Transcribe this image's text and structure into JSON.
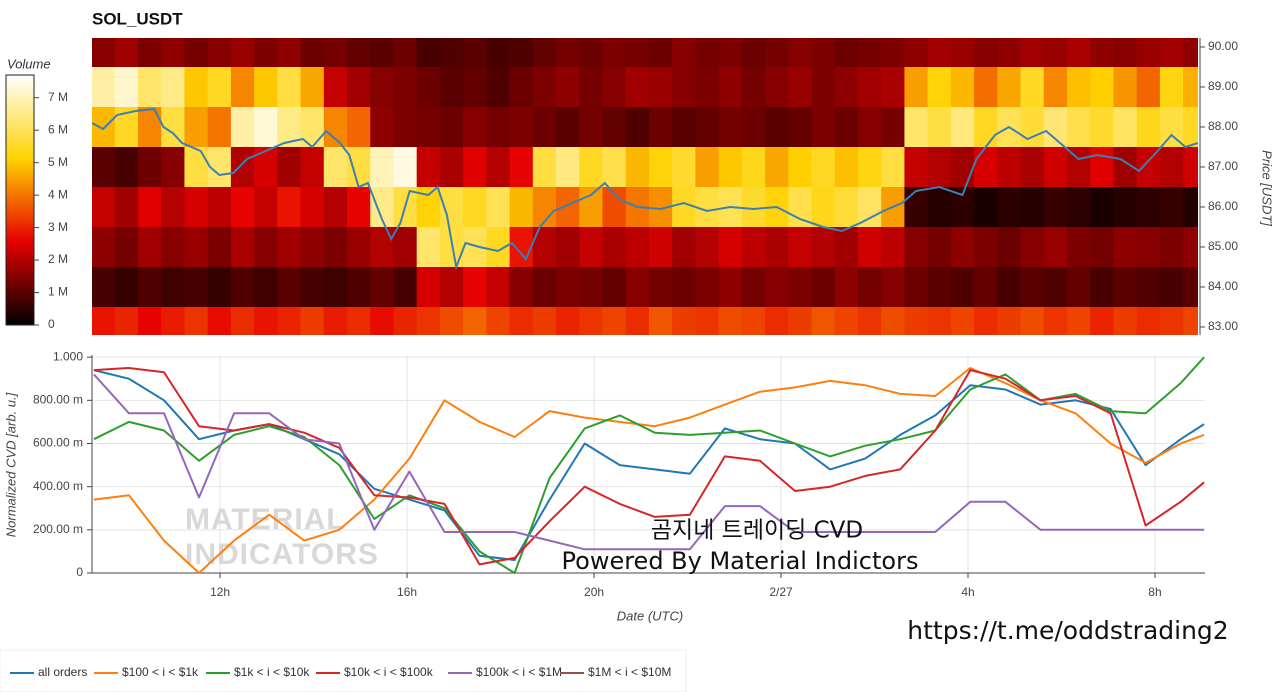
{
  "chart_data": [
    {
      "type": "heatmap",
      "title": "SOL_USDT",
      "ylabel": "Price [USDT]",
      "x": [
        9.5,
        10,
        10.5,
        11,
        11.5,
        12,
        12.5,
        13,
        13.5,
        14,
        14.5,
        15,
        15.5,
        16,
        16.5,
        17,
        17.5,
        18,
        18.5,
        19,
        19.5,
        20,
        20.5,
        21,
        21.5,
        22,
        22.5,
        23,
        23.5,
        24,
        24.5,
        25,
        25.5,
        26,
        26.5,
        27,
        27.5,
        28,
        28.5,
        29,
        29.5,
        30,
        30.5,
        31,
        31.5,
        32,
        32.5,
        33
      ],
      "y": [
        90,
        89,
        88,
        87,
        86,
        85,
        84,
        83
      ],
      "z": [
        [
          1.5,
          1.8,
          1.4,
          1.6,
          1.3,
          1.5,
          1.7,
          1.4,
          1.6,
          1.2,
          1.3,
          1.1,
          1.0,
          1.2,
          0.8,
          0.9,
          1.0,
          0.8,
          0.9,
          1.1,
          1.3,
          1.2,
          1.4,
          1.3,
          1.2,
          1.5,
          1.3,
          1.4,
          1.2,
          1.3,
          1.5,
          1.4,
          1.2,
          1.3,
          1.4,
          1.6,
          1.8,
          1.7,
          1.5,
          1.6,
          1.8,
          1.7,
          1.9,
          1.6,
          1.5,
          1.7,
          1.8,
          1.6
        ],
        [
          6.8,
          7.2,
          6.2,
          6.5,
          5.0,
          5.5,
          4.2,
          5.0,
          5.8,
          4.6,
          2.2,
          1.8,
          1.5,
          1.4,
          1.2,
          1.0,
          1.1,
          0.9,
          1.2,
          1.4,
          1.6,
          1.3,
          1.5,
          1.8,
          1.7,
          1.5,
          1.4,
          1.6,
          1.3,
          1.5,
          1.7,
          1.4,
          1.6,
          1.8,
          1.9,
          4.5,
          5.2,
          4.8,
          3.9,
          4.6,
          5.5,
          4.2,
          4.9,
          5.1,
          4.4,
          3.8,
          5.3,
          4.7
        ],
        [
          4.8,
          5.5,
          4.2,
          5.8,
          4.5,
          4.0,
          6.8,
          7.3,
          6.5,
          6.2,
          4.2,
          3.8,
          1.6,
          1.4,
          1.3,
          1.2,
          1.5,
          1.3,
          1.4,
          1.2,
          1.0,
          1.3,
          1.1,
          0.9,
          1.2,
          1.0,
          1.1,
          1.3,
          1.2,
          1.0,
          1.1,
          1.4,
          1.2,
          1.5,
          1.3,
          6.2,
          5.8,
          6.4,
          5.5,
          6.0,
          5.7,
          6.3,
          5.9,
          5.6,
          6.1,
          5.4,
          5.8,
          5.5
        ],
        [
          1.0,
          0.8,
          1.2,
          1.5,
          5.8,
          6.2,
          2.0,
          2.4,
          1.8,
          2.2,
          6.2,
          5.8,
          7.0,
          7.4,
          2.2,
          1.9,
          2.5,
          2.0,
          2.6,
          5.8,
          6.4,
          5.5,
          5.9,
          4.8,
          5.2,
          5.6,
          4.5,
          5.0,
          5.4,
          4.6,
          5.1,
          5.5,
          4.9,
          5.3,
          5.8,
          2.2,
          2.0,
          1.8,
          2.4,
          2.1,
          1.9,
          2.3,
          2.0,
          2.5,
          1.8,
          2.2,
          2.0,
          2.3
        ],
        [
          2.2,
          1.8,
          2.5,
          2.0,
          2.4,
          2.1,
          2.6,
          2.2,
          2.8,
          2.4,
          2.0,
          2.6,
          6.5,
          5.8,
          5.2,
          5.8,
          5.5,
          6.0,
          4.8,
          4.2,
          3.8,
          4.5,
          3.5,
          4.0,
          4.3,
          5.5,
          5.8,
          6.0,
          5.6,
          5.2,
          5.9,
          5.4,
          5.7,
          6.1,
          4.5,
          0.6,
          0.4,
          0.5,
          0.3,
          0.5,
          0.4,
          0.6,
          0.5,
          0.3,
          0.4,
          0.5,
          0.6,
          0.4
        ],
        [
          1.6,
          1.3,
          1.8,
          1.5,
          1.7,
          1.4,
          1.9,
          1.5,
          1.8,
          1.6,
          1.4,
          1.7,
          2.0,
          1.8,
          6.2,
          5.8,
          6.0,
          5.5,
          2.8,
          2.0,
          1.8,
          2.2,
          1.9,
          2.1,
          2.3,
          1.8,
          2.0,
          2.4,
          2.1,
          1.9,
          2.2,
          2.0,
          1.8,
          2.3,
          2.1,
          1.5,
          1.3,
          1.6,
          1.4,
          1.2,
          1.5,
          1.7,
          1.4,
          1.3,
          1.6,
          1.5,
          1.4,
          1.6
        ],
        [
          0.8,
          0.6,
          0.9,
          0.7,
          0.8,
          0.6,
          0.9,
          0.7,
          1.0,
          0.8,
          0.7,
          0.9,
          1.1,
          0.8,
          2.4,
          2.0,
          2.6,
          2.2,
          1.5,
          1.2,
          1.4,
          1.3,
          1.1,
          1.5,
          1.3,
          1.2,
          1.4,
          1.6,
          1.3,
          1.5,
          1.4,
          1.2,
          1.6,
          1.3,
          1.5,
          1.2,
          1.0,
          0.9,
          1.1,
          0.8,
          1.0,
          0.9,
          1.1,
          0.8,
          1.0,
          0.9,
          0.8,
          1.0
        ],
        [
          2.8,
          3.0,
          2.6,
          2.9,
          3.2,
          2.7,
          3.1,
          2.8,
          3.0,
          3.3,
          2.9,
          3.1,
          2.7,
          3.0,
          3.2,
          3.5,
          3.8,
          3.4,
          3.1,
          3.3,
          3.0,
          3.2,
          3.4,
          3.1,
          3.6,
          3.3,
          3.2,
          3.5,
          3.4,
          3.1,
          3.3,
          3.6,
          3.4,
          3.2,
          3.5,
          3.3,
          3.2,
          3.4,
          3.1,
          3.3,
          3.5,
          3.2,
          3.4,
          3.0,
          3.3,
          3.1,
          3.2,
          3.4
        ]
      ],
      "xlim": [
        9.26,
        33.07
      ],
      "ylim": [
        82.8,
        90.225
      ],
      "yticks": [
        {
          "value": 90,
          "label": "90.00"
        },
        {
          "value": 89,
          "label": "89.00"
        },
        {
          "value": 88,
          "label": "88.00"
        },
        {
          "value": 87,
          "label": "87.00"
        },
        {
          "value": 86,
          "label": "86.00"
        },
        {
          "value": 85,
          "label": "85.00"
        },
        {
          "value": 84,
          "label": "84.00"
        },
        {
          "value": 83,
          "label": "83.00"
        }
      ],
      "colorbar": {
        "title": "Volume",
        "zlim": [
          0,
          7.7
        ],
        "colors": [
          "#000000",
          "#e60000",
          "#ffd200",
          "#ffffff"
        ],
        "ticks": [
          0,
          {
            "value": 1,
            "label": "1 M"
          },
          {
            "value": 2,
            "label": "2 M"
          },
          {
            "value": 3,
            "label": "3 M"
          },
          {
            "value": 4,
            "label": "4 M"
          },
          {
            "value": 5,
            "label": "5 M"
          },
          {
            "value": 6,
            "label": "6 M"
          },
          {
            "value": 7,
            "label": "7 M"
          }
        ]
      },
      "price_line": {
        "color": "#3a80b3",
        "x": [
          9.26,
          9.5,
          9.8,
          10.2,
          10.6,
          10.8,
          11.0,
          11.2,
          11.4,
          11.6,
          11.8,
          12.0,
          12.3,
          12.6,
          13.0,
          13.4,
          13.8,
          14.0,
          14.3,
          14.6,
          14.8,
          15.0,
          15.2,
          15.5,
          15.7,
          15.9,
          16.1,
          16.5,
          16.7,
          16.9,
          17.1,
          17.3,
          17.6,
          18.0,
          18.3,
          18.6,
          18.9,
          19.2,
          19.6,
          20.0,
          20.3,
          20.6,
          21.0,
          21.5,
          22.0,
          22.5,
          23.0,
          23.5,
          24.0,
          24.5,
          25.0,
          25.4,
          25.8,
          26.3,
          26.7,
          27.0,
          27.5,
          28.0,
          28.3,
          28.7,
          29.0,
          29.4,
          29.8,
          30.2,
          30.5,
          30.9,
          31.4,
          31.8,
          32.2,
          32.5,
          32.8,
          33.07
        ],
        "values": [
          88.1,
          87.95,
          88.3,
          88.4,
          88.45,
          88.0,
          87.85,
          87.6,
          87.5,
          87.4,
          87.0,
          86.8,
          86.85,
          87.2,
          87.4,
          87.6,
          87.7,
          87.5,
          87.9,
          87.6,
          87.3,
          86.5,
          86.6,
          85.7,
          85.2,
          85.6,
          86.4,
          86.3,
          86.5,
          85.8,
          84.5,
          85.1,
          85.0,
          84.9,
          85.1,
          84.7,
          85.5,
          85.9,
          86.1,
          86.3,
          86.6,
          86.2,
          86.0,
          85.95,
          86.1,
          85.9,
          86.0,
          85.95,
          86.0,
          85.7,
          85.5,
          85.4,
          85.6,
          85.9,
          86.1,
          86.4,
          86.5,
          86.3,
          87.2,
          87.8,
          88.0,
          87.7,
          87.9,
          87.5,
          87.2,
          87.3,
          87.2,
          86.9,
          87.4,
          87.8,
          87.5,
          87.6
        ]
      }
    },
    {
      "type": "line",
      "xlabel": "Date (UTC)",
      "ylabel": "Normalized CVD [arb. u.]",
      "x": [
        9.3,
        10.05,
        10.8,
        11.55,
        12.3,
        13.05,
        13.8,
        14.55,
        15.3,
        16.05,
        16.8,
        17.55,
        18.3,
        19.05,
        19.8,
        20.55,
        21.3,
        22.05,
        22.8,
        23.55,
        24.3,
        25.05,
        25.8,
        26.55,
        27.3,
        28.05,
        28.8,
        29.55,
        30.3,
        31.05,
        31.8,
        32.55,
        33.05
      ],
      "xlim": [
        9.26,
        33.07
      ],
      "xticks": [
        {
          "value": 12,
          "label": "12h"
        },
        {
          "value": 16,
          "label": "16h"
        },
        {
          "value": 20,
          "label": "20h"
        },
        {
          "value": 24,
          "label": "2/27"
        },
        {
          "value": 28,
          "label": "4h"
        },
        {
          "value": 32,
          "label": "8h"
        }
      ],
      "ylim": [
        0,
        1.01
      ],
      "yticks": [
        0,
        {
          "value": 0.2,
          "label": "200.00 m"
        },
        {
          "value": 0.4,
          "label": "400.00 m"
        },
        {
          "value": 0.6,
          "label": "600.00 m"
        },
        {
          "value": 0.8,
          "label": "800.00 m"
        },
        {
          "value": 1,
          "label": "1.000"
        }
      ],
      "grid": true,
      "legend": "bottom-left",
      "series": [
        {
          "name": "all orders",
          "color": "#1f77b4",
          "values": [
            0.94,
            0.9,
            0.8,
            0.62,
            0.66,
            0.69,
            0.62,
            0.55,
            0.39,
            0.34,
            0.29,
            0.08,
            0.06,
            0.34,
            0.6,
            0.5,
            0.48,
            0.46,
            0.67,
            0.62,
            0.6,
            0.48,
            0.53,
            0.64,
            0.73,
            0.87,
            0.85,
            0.78,
            0.8,
            0.76,
            0.5,
            0.62,
            0.69
          ]
        },
        {
          "name": "$100 < i < $1k",
          "color": "#ff7f0e",
          "values": [
            0.34,
            0.36,
            0.15,
            0.0,
            0.15,
            0.27,
            0.15,
            0.2,
            0.34,
            0.53,
            0.8,
            0.7,
            0.63,
            0.75,
            0.72,
            0.7,
            0.68,
            0.72,
            0.78,
            0.84,
            0.86,
            0.89,
            0.87,
            0.83,
            0.82,
            0.95,
            0.88,
            0.8,
            0.74,
            0.6,
            0.51,
            0.6,
            0.64
          ]
        },
        {
          "name": "$1k < i < $10k",
          "color": "#2ca02c",
          "values": [
            0.62,
            0.7,
            0.66,
            0.52,
            0.64,
            0.68,
            0.63,
            0.5,
            0.25,
            0.36,
            0.3,
            0.1,
            0.0,
            0.44,
            0.67,
            0.73,
            0.65,
            0.64,
            0.65,
            0.66,
            0.6,
            0.54,
            0.59,
            0.62,
            0.66,
            0.85,
            0.92,
            0.8,
            0.83,
            0.75,
            0.74,
            0.88,
            1.0
          ]
        },
        {
          "name": "$10k < i < $100k",
          "color": "#d62728",
          "values": [
            0.94,
            0.95,
            0.93,
            0.68,
            0.66,
            0.69,
            0.65,
            0.58,
            0.36,
            0.35,
            0.32,
            0.04,
            0.07,
            0.24,
            0.4,
            0.32,
            0.26,
            0.27,
            0.54,
            0.52,
            0.38,
            0.4,
            0.45,
            0.48,
            0.66,
            0.94,
            0.9,
            0.8,
            0.82,
            0.74,
            0.22,
            0.33,
            0.42
          ]
        },
        {
          "name": "$100k < i < $1M",
          "color": "#9467bd",
          "values": [
            0.92,
            0.74,
            0.74,
            0.35,
            0.74,
            0.74,
            0.62,
            0.6,
            0.2,
            0.47,
            0.19,
            0.19,
            0.19,
            0.15,
            0.11,
            0.11,
            0.11,
            0.11,
            0.31,
            0.31,
            0.19,
            0.19,
            0.19,
            0.19,
            0.19,
            0.33,
            0.33,
            0.2,
            0.2,
            0.2,
            0.2,
            0.2,
            0.2
          ]
        },
        {
          "name": "$1M < i < $10M",
          "color": "#8c564b",
          "values": [
            null,
            null,
            null,
            null,
            null,
            null,
            null,
            null,
            null,
            null,
            null,
            null,
            null,
            null,
            null,
            null,
            null,
            null,
            null,
            null,
            null,
            null,
            null,
            null,
            null,
            null,
            null,
            null,
            null,
            null,
            null,
            null,
            null
          ]
        }
      ],
      "annotations": [
        "MATERIAL",
        "INDICATORS",
        "곰지네 트레이딩 CVD",
        "Powered By Material Indictors",
        "https://t.me/oddstrading2"
      ]
    }
  ]
}
